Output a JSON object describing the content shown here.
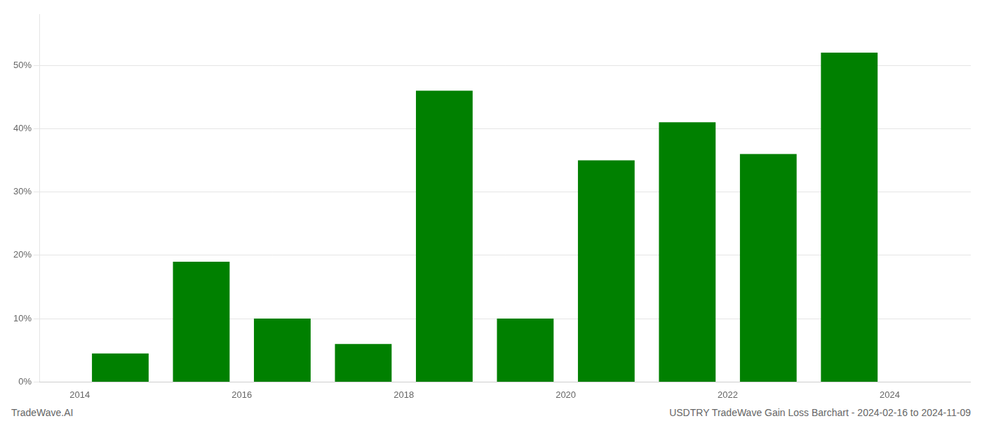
{
  "chart_data": {
    "type": "bar",
    "x": [
      2014,
      2015,
      2016,
      2017,
      2018,
      2019,
      2020,
      2021,
      2022,
      2023
    ],
    "values": [
      4.5,
      19.0,
      10.0,
      6.0,
      46.0,
      10.0,
      35.0,
      41.0,
      36.0,
      52.0
    ],
    "color": "#008000",
    "xlim": [
      2013.0,
      2024.5
    ],
    "xticks": [
      {
        "value": 2013.5,
        "label": "2014"
      },
      {
        "value": 2015.5,
        "label": "2016"
      },
      {
        "value": 2017.5,
        "label": "2018"
      },
      {
        "value": 2019.5,
        "label": "2020"
      },
      {
        "value": 2021.5,
        "label": "2022"
      },
      {
        "value": 2023.5,
        "label": "2024"
      }
    ],
    "ylim": [
      0,
      58
    ],
    "yticks": [
      {
        "value": 0,
        "label": "0%"
      },
      {
        "value": 10,
        "label": "10%"
      },
      {
        "value": 20,
        "label": "20%"
      },
      {
        "value": 30,
        "label": "30%"
      },
      {
        "value": 40,
        "label": "40%"
      },
      {
        "value": 50,
        "label": "50%"
      }
    ],
    "grid": true,
    "annotations": [
      "TradeWave.AI",
      "USDTRY TradeWave Gain Loss Barchart - 2024-02-16 to 2024-11-09"
    ]
  }
}
